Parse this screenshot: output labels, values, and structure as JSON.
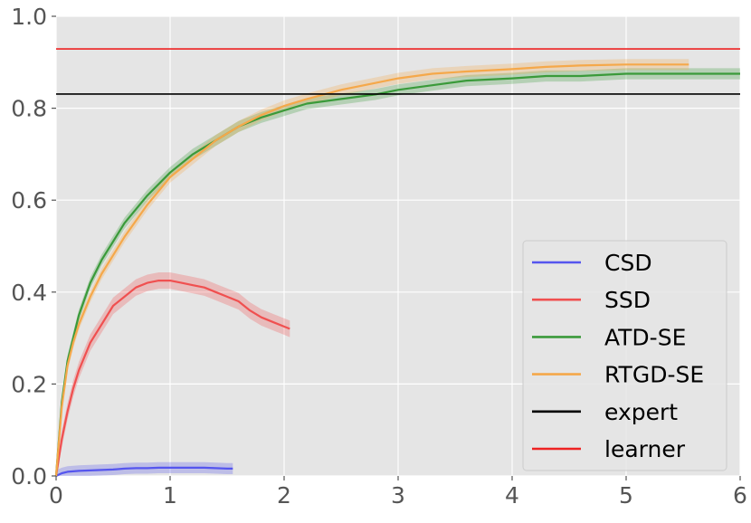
{
  "chart_data": {
    "type": "line",
    "title": "",
    "xlabel": "",
    "ylabel": "",
    "xlim": [
      0,
      6
    ],
    "ylim": [
      0,
      1.0
    ],
    "xticks": [
      "0",
      "1",
      "2",
      "3",
      "4",
      "5",
      "6"
    ],
    "yticks": [
      "0.0",
      "0.2",
      "0.4",
      "0.6",
      "0.8",
      "1.0"
    ],
    "grid": true,
    "background": "#e5e5e5",
    "legend_position": "lower-right",
    "series": [
      {
        "name": "CSD",
        "color": "#5555ee",
        "x": [
          0,
          0.05,
          0.1,
          0.2,
          0.3,
          0.4,
          0.5,
          0.6,
          0.7,
          0.8,
          0.9,
          1.0,
          1.1,
          1.2,
          1.3,
          1.4,
          1.5,
          1.55
        ],
        "y": [
          0.0,
          0.006,
          0.009,
          0.011,
          0.012,
          0.013,
          0.014,
          0.016,
          0.017,
          0.017,
          0.018,
          0.018,
          0.018,
          0.018,
          0.018,
          0.017,
          0.016,
          0.016
        ]
      },
      {
        "name": "SSD",
        "color": "#f05050",
        "x": [
          0,
          0.05,
          0.1,
          0.15,
          0.2,
          0.3,
          0.4,
          0.5,
          0.6,
          0.7,
          0.8,
          0.9,
          1.0,
          1.1,
          1.2,
          1.3,
          1.4,
          1.5,
          1.6,
          1.7,
          1.8,
          1.9,
          2.0,
          2.05
        ],
        "y": [
          0.0,
          0.08,
          0.14,
          0.19,
          0.23,
          0.29,
          0.33,
          0.37,
          0.39,
          0.41,
          0.42,
          0.425,
          0.425,
          0.42,
          0.415,
          0.41,
          0.4,
          0.39,
          0.38,
          0.36,
          0.345,
          0.335,
          0.325,
          0.32
        ]
      },
      {
        "name": "ATD-SE",
        "color": "#3a9a3a",
        "x": [
          0,
          0.05,
          0.1,
          0.15,
          0.2,
          0.3,
          0.4,
          0.5,
          0.6,
          0.8,
          1.0,
          1.2,
          1.4,
          1.6,
          1.8,
          2.0,
          2.2,
          2.5,
          2.8,
          3.0,
          3.3,
          3.6,
          4.0,
          4.3,
          4.6,
          5.0,
          5.3,
          5.6,
          6.0
        ],
        "y": [
          0.0,
          0.16,
          0.25,
          0.3,
          0.35,
          0.42,
          0.47,
          0.51,
          0.55,
          0.61,
          0.66,
          0.7,
          0.73,
          0.76,
          0.78,
          0.795,
          0.81,
          0.82,
          0.83,
          0.84,
          0.85,
          0.86,
          0.865,
          0.87,
          0.87,
          0.875,
          0.875,
          0.875,
          0.875
        ]
      },
      {
        "name": "RTGD-SE",
        "color": "#f5a84a",
        "x": [
          0,
          0.05,
          0.1,
          0.15,
          0.2,
          0.3,
          0.4,
          0.5,
          0.6,
          0.8,
          1.0,
          1.2,
          1.4,
          1.6,
          1.8,
          2.0,
          2.2,
          2.5,
          2.8,
          3.0,
          3.3,
          3.6,
          4.0,
          4.3,
          4.6,
          5.0,
          5.3,
          5.55
        ],
        "y": [
          0.0,
          0.15,
          0.24,
          0.29,
          0.33,
          0.39,
          0.44,
          0.48,
          0.52,
          0.59,
          0.65,
          0.69,
          0.73,
          0.76,
          0.785,
          0.805,
          0.82,
          0.84,
          0.855,
          0.865,
          0.875,
          0.88,
          0.885,
          0.89,
          0.893,
          0.895,
          0.895,
          0.895
        ]
      },
      {
        "name": "expert",
        "color": "#000000",
        "x": [
          0,
          6
        ],
        "y": [
          0.831,
          0.831
        ]
      },
      {
        "name": "learner",
        "color": "#ee2222",
        "x": [
          0,
          6
        ],
        "y": [
          0.929,
          0.929
        ]
      }
    ]
  }
}
